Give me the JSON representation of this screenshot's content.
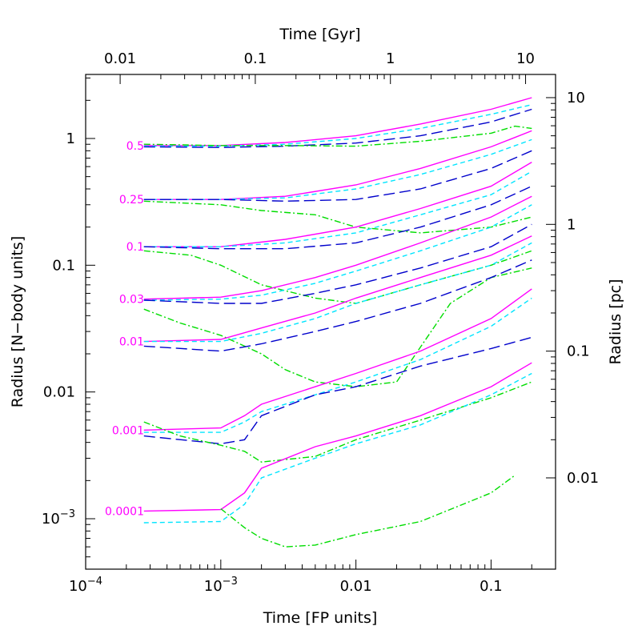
{
  "chart_data": {
    "type": "line",
    "xlabel_bottom": "Time [FP units]",
    "xlabel_top": "Time [Gyr]",
    "ylabel_left": "Radius [N−body units]",
    "ylabel_right": "Radius [pc]",
    "x_scale": "log",
    "y_scale": "log",
    "xlim": [
      0.0001,
      0.3
    ],
    "ylim": [
      0.0004,
      3.2
    ],
    "x_ticks": [
      {
        "value": 0.0001,
        "label": "10−4"
      },
      {
        "value": 0.001,
        "label": "10−3"
      },
      {
        "value": 0.01,
        "label": "0.01"
      },
      {
        "value": 0.1,
        "label": "0.1"
      }
    ],
    "y_ticks": [
      {
        "value": 0.001,
        "label": "10−3"
      },
      {
        "value": 0.01,
        "label": "0.01"
      },
      {
        "value": 0.1,
        "label": "0.1"
      },
      {
        "value": 1,
        "label": "1"
      }
    ],
    "top_ticks": [
      {
        "label": "0.01",
        "x": 0.00018
      },
      {
        "label": "0.1",
        "x": 0.0018
      },
      {
        "label": "1",
        "x": 0.018
      },
      {
        "label": "10",
        "x": 0.18
      }
    ],
    "right_ticks": [
      {
        "label": "10",
        "y": 2.1
      },
      {
        "label": "1",
        "y": 0.21
      },
      {
        "label": "0.1",
        "y": 0.021
      },
      {
        "label": "0.01",
        "y": 0.0021
      }
    ],
    "mass_fraction_labels": [
      "0.5",
      "0.25",
      "0.1",
      "0.03",
      "0.01",
      "0.001",
      "0.0001"
    ],
    "series_styles": [
      {
        "color": "#ff00ff",
        "dash": "solid"
      },
      {
        "color": "#00e5ff",
        "dash": "short-dash"
      },
      {
        "color": "#0000cc",
        "dash": "long-dash"
      },
      {
        "color": "#00dd00",
        "dash": "dash-dot"
      }
    ],
    "series": [
      {
        "style": 0,
        "group": "0.5",
        "points": [
          [
            0.00027,
            0.88
          ],
          [
            0.001,
            0.88
          ],
          [
            0.003,
            0.93
          ],
          [
            0.01,
            1.05
          ],
          [
            0.03,
            1.3
          ],
          [
            0.1,
            1.7
          ],
          [
            0.2,
            2.1
          ]
        ]
      },
      {
        "style": 1,
        "group": "0.5",
        "points": [
          [
            0.00027,
            0.87
          ],
          [
            0.001,
            0.87
          ],
          [
            0.003,
            0.9
          ],
          [
            0.01,
            1.0
          ],
          [
            0.03,
            1.2
          ],
          [
            0.1,
            1.55
          ],
          [
            0.2,
            1.85
          ]
        ]
      },
      {
        "style": 2,
        "group": "0.5",
        "points": [
          [
            0.00027,
            0.86
          ],
          [
            0.001,
            0.85
          ],
          [
            0.003,
            0.87
          ],
          [
            0.01,
            0.92
          ],
          [
            0.03,
            1.05
          ],
          [
            0.1,
            1.35
          ],
          [
            0.2,
            1.7
          ]
        ]
      },
      {
        "style": 3,
        "group": "0.5",
        "points": [
          [
            0.00027,
            0.9
          ],
          [
            0.001,
            0.88
          ],
          [
            0.003,
            0.88
          ],
          [
            0.01,
            0.87
          ],
          [
            0.03,
            0.95
          ],
          [
            0.1,
            1.1
          ],
          [
            0.15,
            1.25
          ],
          [
            0.2,
            1.2
          ]
        ]
      },
      {
        "style": 0,
        "group": "0.25",
        "points": [
          [
            0.00027,
            0.33
          ],
          [
            0.001,
            0.33
          ],
          [
            0.003,
            0.35
          ],
          [
            0.01,
            0.43
          ],
          [
            0.03,
            0.58
          ],
          [
            0.1,
            0.86
          ],
          [
            0.2,
            1.15
          ]
        ]
      },
      {
        "style": 1,
        "group": "0.25",
        "points": [
          [
            0.00027,
            0.33
          ],
          [
            0.001,
            0.33
          ],
          [
            0.003,
            0.34
          ],
          [
            0.01,
            0.4
          ],
          [
            0.03,
            0.52
          ],
          [
            0.1,
            0.75
          ],
          [
            0.2,
            0.98
          ]
        ]
      },
      {
        "style": 2,
        "group": "0.25",
        "points": [
          [
            0.00027,
            0.33
          ],
          [
            0.001,
            0.33
          ],
          [
            0.003,
            0.32
          ],
          [
            0.01,
            0.33
          ],
          [
            0.03,
            0.4
          ],
          [
            0.1,
            0.58
          ],
          [
            0.2,
            0.8
          ]
        ]
      },
      {
        "style": 3,
        "group": "0.25",
        "points": [
          [
            0.00027,
            0.32
          ],
          [
            0.001,
            0.3
          ],
          [
            0.002,
            0.27
          ],
          [
            0.005,
            0.25
          ],
          [
            0.01,
            0.2
          ],
          [
            0.03,
            0.18
          ],
          [
            0.1,
            0.2
          ],
          [
            0.2,
            0.24
          ]
        ]
      },
      {
        "style": 0,
        "group": "0.1",
        "points": [
          [
            0.00027,
            0.14
          ],
          [
            0.001,
            0.14
          ],
          [
            0.003,
            0.16
          ],
          [
            0.01,
            0.2
          ],
          [
            0.03,
            0.28
          ],
          [
            0.1,
            0.42
          ],
          [
            0.2,
            0.65
          ]
        ]
      },
      {
        "style": 1,
        "group": "0.1",
        "points": [
          [
            0.00027,
            0.14
          ],
          [
            0.001,
            0.14
          ],
          [
            0.003,
            0.15
          ],
          [
            0.01,
            0.18
          ],
          [
            0.03,
            0.25
          ],
          [
            0.1,
            0.36
          ],
          [
            0.2,
            0.55
          ]
        ]
      },
      {
        "style": 2,
        "group": "0.1",
        "points": [
          [
            0.00027,
            0.14
          ],
          [
            0.001,
            0.135
          ],
          [
            0.003,
            0.135
          ],
          [
            0.01,
            0.15
          ],
          [
            0.03,
            0.2
          ],
          [
            0.1,
            0.3
          ],
          [
            0.2,
            0.42
          ]
        ]
      },
      {
        "style": 3,
        "group": "0.1",
        "points": [
          [
            0.00027,
            0.13
          ],
          [
            0.0006,
            0.12
          ],
          [
            0.001,
            0.1
          ],
          [
            0.002,
            0.07
          ],
          [
            0.005,
            0.055
          ],
          [
            0.01,
            0.05
          ],
          [
            0.03,
            0.07
          ],
          [
            0.1,
            0.1
          ],
          [
            0.2,
            0.13
          ]
        ]
      },
      {
        "style": 0,
        "group": "0.03",
        "points": [
          [
            0.00027,
            0.054
          ],
          [
            0.001,
            0.056
          ],
          [
            0.002,
            0.063
          ],
          [
            0.005,
            0.08
          ],
          [
            0.01,
            0.1
          ],
          [
            0.03,
            0.15
          ],
          [
            0.1,
            0.24
          ],
          [
            0.2,
            0.35
          ]
        ]
      },
      {
        "style": 1,
        "group": "0.03",
        "points": [
          [
            0.00027,
            0.053
          ],
          [
            0.001,
            0.054
          ],
          [
            0.002,
            0.058
          ],
          [
            0.005,
            0.072
          ],
          [
            0.01,
            0.09
          ],
          [
            0.03,
            0.13
          ],
          [
            0.1,
            0.2
          ],
          [
            0.2,
            0.3
          ]
        ]
      },
      {
        "style": 2,
        "group": "0.03",
        "points": [
          [
            0.00027,
            0.053
          ],
          [
            0.001,
            0.05
          ],
          [
            0.002,
            0.05
          ],
          [
            0.005,
            0.06
          ],
          [
            0.01,
            0.07
          ],
          [
            0.03,
            0.095
          ],
          [
            0.1,
            0.14
          ],
          [
            0.2,
            0.21
          ]
        ]
      },
      {
        "style": 3,
        "group": "0.03",
        "points": [
          [
            0.00027,
            0.045
          ],
          [
            0.0005,
            0.035
          ],
          [
            0.001,
            0.028
          ],
          [
            0.002,
            0.02
          ],
          [
            0.003,
            0.015
          ],
          [
            0.005,
            0.012
          ],
          [
            0.01,
            0.011
          ],
          [
            0.02,
            0.012
          ],
          [
            0.05,
            0.05
          ],
          [
            0.1,
            0.08
          ],
          [
            0.2,
            0.095
          ]
        ]
      },
      {
        "style": 0,
        "group": "0.01",
        "points": [
          [
            0.00027,
            0.025
          ],
          [
            0.001,
            0.026
          ],
          [
            0.002,
            0.032
          ],
          [
            0.005,
            0.042
          ],
          [
            0.01,
            0.055
          ],
          [
            0.03,
            0.08
          ],
          [
            0.1,
            0.12
          ],
          [
            0.2,
            0.17
          ]
        ]
      },
      {
        "style": 1,
        "group": "0.01",
        "points": [
          [
            0.00027,
            0.025
          ],
          [
            0.001,
            0.025
          ],
          [
            0.002,
            0.029
          ],
          [
            0.005,
            0.038
          ],
          [
            0.01,
            0.05
          ],
          [
            0.03,
            0.07
          ],
          [
            0.1,
            0.1
          ],
          [
            0.2,
            0.15
          ]
        ]
      },
      {
        "style": 2,
        "group": "0.01",
        "points": [
          [
            0.00027,
            0.023
          ],
          [
            0.001,
            0.021
          ],
          [
            0.002,
            0.024
          ],
          [
            0.005,
            0.03
          ],
          [
            0.01,
            0.036
          ],
          [
            0.03,
            0.05
          ],
          [
            0.1,
            0.08
          ],
          [
            0.2,
            0.11
          ]
        ]
      },
      {
        "style": 0,
        "group": "0.001",
        "points": [
          [
            0.00027,
            0.005
          ],
          [
            0.001,
            0.0052
          ],
          [
            0.0015,
            0.0065
          ],
          [
            0.002,
            0.008
          ],
          [
            0.005,
            0.011
          ],
          [
            0.01,
            0.014
          ],
          [
            0.03,
            0.021
          ],
          [
            0.1,
            0.038
          ],
          [
            0.2,
            0.065
          ]
        ]
      },
      {
        "style": 1,
        "group": "0.001",
        "points": [
          [
            0.00027,
            0.0048
          ],
          [
            0.001,
            0.0048
          ],
          [
            0.0015,
            0.0058
          ],
          [
            0.002,
            0.007
          ],
          [
            0.005,
            0.0095
          ],
          [
            0.01,
            0.012
          ],
          [
            0.03,
            0.018
          ],
          [
            0.1,
            0.033
          ],
          [
            0.2,
            0.055
          ]
        ]
      },
      {
        "style": 2,
        "group": "0.001",
        "points": [
          [
            0.00027,
            0.0045
          ],
          [
            0.001,
            0.0039
          ],
          [
            0.0015,
            0.0042
          ],
          [
            0.002,
            0.0065
          ],
          [
            0.005,
            0.0095
          ],
          [
            0.01,
            0.011
          ],
          [
            0.03,
            0.016
          ],
          [
            0.1,
            0.022
          ],
          [
            0.2,
            0.027
          ]
        ]
      },
      {
        "style": 3,
        "group": "0.001",
        "points": [
          [
            0.00027,
            0.0058
          ],
          [
            0.0005,
            0.0045
          ],
          [
            0.001,
            0.0038
          ],
          [
            0.0015,
            0.0034
          ],
          [
            0.002,
            0.0028
          ],
          [
            0.005,
            0.0031
          ],
          [
            0.01,
            0.0042
          ],
          [
            0.03,
            0.006
          ],
          [
            0.1,
            0.009
          ],
          [
            0.2,
            0.012
          ]
        ]
      },
      {
        "style": 0,
        "group": "0.0001",
        "points": [
          [
            0.00027,
            0.00115
          ],
          [
            0.001,
            0.00118
          ],
          [
            0.0015,
            0.0016
          ],
          [
            0.002,
            0.0025
          ],
          [
            0.005,
            0.0037
          ],
          [
            0.01,
            0.0045
          ],
          [
            0.03,
            0.0065
          ],
          [
            0.1,
            0.011
          ],
          [
            0.2,
            0.017
          ]
        ]
      },
      {
        "style": 1,
        "group": "0.0001",
        "points": [
          [
            0.00027,
            0.00093
          ],
          [
            0.001,
            0.00095
          ],
          [
            0.0015,
            0.0013
          ],
          [
            0.002,
            0.0021
          ],
          [
            0.005,
            0.003
          ],
          [
            0.01,
            0.0039
          ],
          [
            0.03,
            0.0055
          ],
          [
            0.1,
            0.0095
          ],
          [
            0.2,
            0.014
          ]
        ]
      },
      {
        "style": 3,
        "group": "0.0001",
        "points": [
          [
            0.001,
            0.0012
          ],
          [
            0.0015,
            0.00085
          ],
          [
            0.002,
            0.0007
          ],
          [
            0.003,
            0.0006
          ],
          [
            0.005,
            0.00062
          ],
          [
            0.01,
            0.00075
          ],
          [
            0.03,
            0.00095
          ],
          [
            0.1,
            0.0016
          ],
          [
            0.15,
            0.0022
          ]
        ]
      }
    ]
  }
}
